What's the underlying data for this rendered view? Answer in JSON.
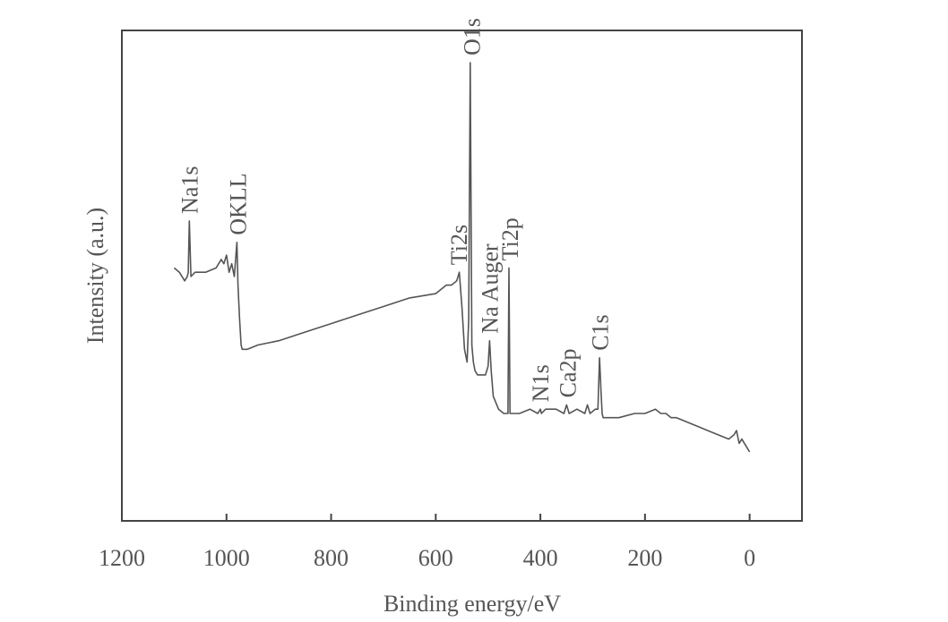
{
  "chart_data": {
    "type": "line",
    "xlabel": "Binding energy/eV",
    "ylabel": "Intensity (a.u.)",
    "xlim": [
      1200,
      -100
    ],
    "x_reversed": true,
    "ylim": [
      0,
      100
    ],
    "y_ticks_shown": false,
    "x_ticks": [
      1200,
      1000,
      800,
      600,
      400,
      200,
      0
    ],
    "grid": false,
    "legend": "none",
    "line_color": "#555555",
    "series": [
      {
        "x": [
          1100,
          1090,
          1080,
          1075,
          1073,
          1071,
          1068,
          1060,
          1040,
          1020,
          1010,
          1005,
          1000,
          995,
          990,
          985,
          982,
          980,
          978,
          975,
          972,
          970,
          960,
          940,
          900,
          850,
          800,
          750,
          700,
          650,
          600,
          580,
          570,
          560,
          555,
          550,
          545,
          540,
          537,
          534,
          531,
          528,
          525,
          520,
          510,
          505,
          500,
          497,
          494,
          490,
          480,
          470,
          465,
          462,
          460,
          458,
          455,
          440,
          420,
          405,
          400,
          398,
          390,
          370,
          355,
          350,
          345,
          330,
          315,
          310,
          305,
          295,
          290,
          287,
          284,
          282,
          280,
          275,
          250,
          220,
          200,
          180,
          170,
          160,
          150,
          140,
          120,
          100,
          80,
          60,
          40,
          30,
          25,
          20,
          15,
          10,
          5,
          0
        ],
        "y": [
          52,
          51,
          49,
          50,
          51,
          63,
          50,
          51,
          51,
          52,
          54,
          53,
          55,
          51,
          53,
          50,
          55,
          58,
          48,
          40,
          34,
          33,
          33,
          34,
          35,
          37,
          39,
          41,
          43,
          45,
          46,
          48,
          48,
          49,
          51,
          43,
          33,
          30,
          40,
          100,
          34,
          30,
          28,
          27,
          27,
          27,
          29,
          35,
          28,
          22,
          19,
          18,
          18,
          18,
          52,
          18,
          18,
          18,
          19,
          18,
          19,
          18,
          19,
          19,
          18,
          20,
          18,
          19,
          18,
          20,
          18,
          19,
          19,
          31,
          23,
          18,
          17,
          17,
          17,
          18,
          18,
          19,
          18,
          18,
          17,
          17,
          16,
          15,
          14,
          13,
          12,
          13,
          14,
          11,
          12,
          11,
          10,
          9
        ]
      }
    ],
    "annotations": [
      {
        "text": "Na1s",
        "x": 1071
      },
      {
        "text": "OKLL",
        "x": 978
      },
      {
        "text": "Ti2s",
        "x": 556
      },
      {
        "text": "O1s",
        "x": 531
      },
      {
        "text": "Na Auger",
        "x": 497
      },
      {
        "text": "Ti2p",
        "x": 458
      },
      {
        "text": "N1s",
        "x": 400
      },
      {
        "text": "Ca2p",
        "x": 348
      },
      {
        "text": "C1s",
        "x": 286
      }
    ]
  }
}
